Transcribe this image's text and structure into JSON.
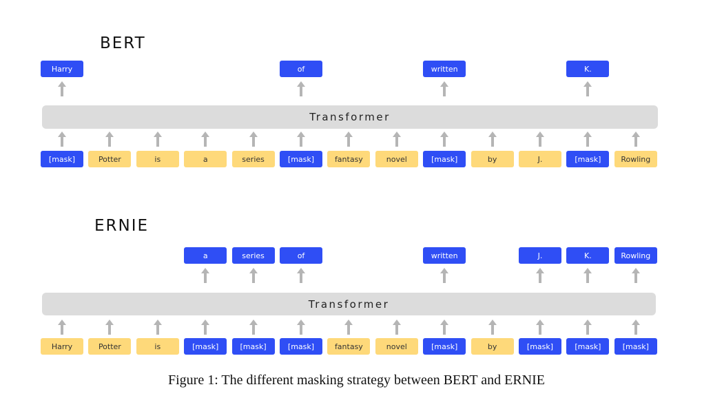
{
  "colors": {
    "masked": "#2f4ef5",
    "unmasked": "#fed97a",
    "transformer": "#dcdcdc",
    "arrow": "#b5b5b5"
  },
  "panels": [
    {
      "id": "bert",
      "title": "BERT",
      "transformer_label": "Transformer",
      "input_tokens": [
        {
          "text": "[mask]",
          "masked": true
        },
        {
          "text": "Potter",
          "masked": false
        },
        {
          "text": "is",
          "masked": false
        },
        {
          "text": "a",
          "masked": false
        },
        {
          "text": "series",
          "masked": false
        },
        {
          "text": "[mask]",
          "masked": true
        },
        {
          "text": "fantasy",
          "masked": false
        },
        {
          "text": "novel",
          "masked": false
        },
        {
          "text": "[mask]",
          "masked": true
        },
        {
          "text": "by",
          "masked": false
        },
        {
          "text": "J.",
          "masked": false
        },
        {
          "text": "[mask]",
          "masked": true
        },
        {
          "text": "Rowling",
          "masked": false
        }
      ],
      "output_tokens": [
        {
          "text": "Harry",
          "column": 0
        },
        {
          "text": "of",
          "column": 5
        },
        {
          "text": "written",
          "column": 8
        },
        {
          "text": "K.",
          "column": 11
        }
      ]
    },
    {
      "id": "ernie",
      "title": "ERNIE",
      "transformer_label": "Transformer",
      "input_tokens": [
        {
          "text": "Harry",
          "masked": false
        },
        {
          "text": "Potter",
          "masked": false
        },
        {
          "text": "is",
          "masked": false
        },
        {
          "text": "[mask]",
          "masked": true
        },
        {
          "text": "[mask]",
          "masked": true
        },
        {
          "text": "[mask]",
          "masked": true
        },
        {
          "text": "fantasy",
          "masked": false
        },
        {
          "text": "novel",
          "masked": false
        },
        {
          "text": "[mask]",
          "masked": true
        },
        {
          "text": "by",
          "masked": false
        },
        {
          "text": "[mask]",
          "masked": true
        },
        {
          "text": "[mask]",
          "masked": true
        },
        {
          "text": "[mask]",
          "masked": true
        }
      ],
      "output_tokens": [
        {
          "text": "a",
          "column": 3
        },
        {
          "text": "series",
          "column": 4
        },
        {
          "text": "of",
          "column": 5
        },
        {
          "text": "written",
          "column": 8
        },
        {
          "text": "J.",
          "column": 10
        },
        {
          "text": "K.",
          "column": 11
        },
        {
          "text": "Rowling",
          "column": 12
        }
      ]
    }
  ],
  "caption": "Figure 1: The different masking strategy between BERT and ERNIE"
}
